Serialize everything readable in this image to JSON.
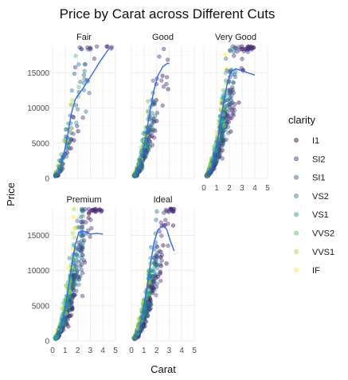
{
  "chart_data": {
    "type": "scatter",
    "title": "Price by Carat across Different Cuts",
    "xlabel": "Carat",
    "ylabel": "Price",
    "xlim": [
      0,
      5
    ],
    "ylim": [
      0,
      18800
    ],
    "x_ticks": [
      "0",
      "1",
      "2",
      "3",
      "4",
      "5"
    ],
    "y_ticks": [
      "0",
      "5000",
      "10000",
      "15000"
    ],
    "x_tick_values": [
      0,
      1,
      2,
      3,
      4,
      5
    ],
    "y_tick_values": [
      0,
      5000,
      10000,
      15000
    ],
    "grid": true,
    "legend": {
      "title": "clarity",
      "placement": "right",
      "entries": [
        "I1",
        "SI2",
        "SI1",
        "VS2",
        "VS1",
        "VVS2",
        "VVS1",
        "IF"
      ],
      "colors": [
        "#440154",
        "#46337e",
        "#365c8d",
        "#277f8e",
        "#1fa187",
        "#4ac16d",
        "#a0da39",
        "#fde725"
      ]
    },
    "facets": [
      {
        "name": "Fair",
        "smooth": [
          [
            0.3,
            600
          ],
          [
            0.6,
            1500
          ],
          [
            0.9,
            3400
          ],
          [
            1.2,
            6200
          ],
          [
            1.5,
            9300
          ],
          [
            1.8,
            11200
          ],
          [
            2.1,
            12000
          ],
          [
            2.6,
            13300
          ],
          [
            3.2,
            15000
          ],
          [
            3.8,
            16700
          ],
          [
            4.5,
            18500
          ]
        ]
      },
      {
        "name": "Good",
        "smooth": [
          [
            0.3,
            500
          ],
          [
            0.6,
            1500
          ],
          [
            0.9,
            3600
          ],
          [
            1.2,
            6600
          ],
          [
            1.5,
            9800
          ],
          [
            1.8,
            12600
          ],
          [
            2.1,
            14600
          ],
          [
            2.5,
            15900
          ],
          [
            2.9,
            16400
          ],
          [
            3.0,
            16300
          ]
        ]
      },
      {
        "name": "Very Good",
        "smooth": [
          [
            0.3,
            500
          ],
          [
            0.6,
            1500
          ],
          [
            0.9,
            3600
          ],
          [
            1.2,
            6800
          ],
          [
            1.5,
            10200
          ],
          [
            1.8,
            13200
          ],
          [
            2.1,
            15100
          ],
          [
            2.5,
            15600
          ],
          [
            3.0,
            15300
          ],
          [
            3.5,
            15000
          ],
          [
            4.0,
            14700
          ]
        ]
      },
      {
        "name": "Premium",
        "smooth": [
          [
            0.3,
            500
          ],
          [
            0.6,
            1500
          ],
          [
            0.9,
            3600
          ],
          [
            1.2,
            6900
          ],
          [
            1.5,
            10500
          ],
          [
            1.8,
            13600
          ],
          [
            2.1,
            15500
          ],
          [
            2.5,
            15600
          ],
          [
            3.0,
            15200
          ],
          [
            3.5,
            15300
          ],
          [
            4.0,
            15200
          ]
        ]
      },
      {
        "name": "Ideal",
        "smooth": [
          [
            0.3,
            500
          ],
          [
            0.6,
            1500
          ],
          [
            0.9,
            3800
          ],
          [
            1.2,
            7200
          ],
          [
            1.5,
            10800
          ],
          [
            1.8,
            14000
          ],
          [
            2.1,
            15800
          ],
          [
            2.5,
            16400
          ],
          [
            2.8,
            15900
          ],
          [
            3.1,
            14200
          ],
          [
            3.4,
            12800
          ]
        ]
      }
    ]
  }
}
